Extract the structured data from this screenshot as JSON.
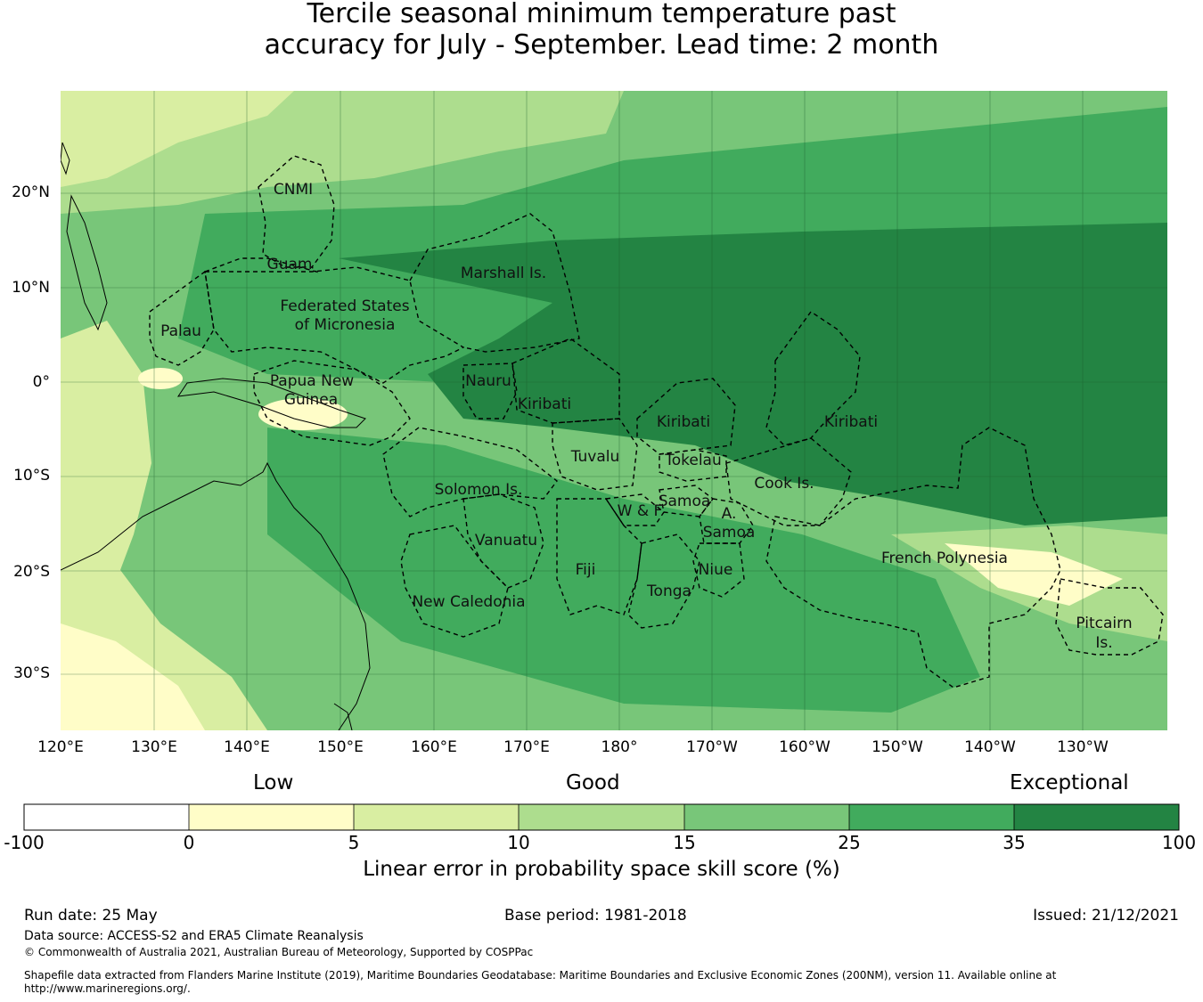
{
  "title_line1": "Tercile seasonal minimum temperature past",
  "title_line2": "accuracy for July - September. Lead time: 2 month",
  "lon_labels": [
    "120°E",
    "130°E",
    "140°E",
    "150°E",
    "160°E",
    "170°E",
    "180°",
    "170°W",
    "160°W",
    "150°W",
    "140°W",
    "130°W"
  ],
  "lat_labels": [
    "20°N",
    "10°N",
    "0°",
    "10°S",
    "20°S",
    "30°S"
  ],
  "regions": [
    "CNMI",
    "Guam",
    "Marshall Is.",
    "Federated States",
    "of Micronesia",
    "Palau",
    "Papua New",
    "Guinea",
    "Nauru",
    "Kiribati",
    "Kiribati",
    "Kiribati",
    "Tuvalu",
    "Tokelau",
    "Cook Is.",
    "Solomon Is.",
    "W & F",
    "Samoa",
    "A.",
    "Samoa",
    "Vanuatu",
    "Fiji",
    "Niue",
    "Tonga",
    "French Polynesia",
    "New Caledonia",
    "Pitcairn",
    "Is."
  ],
  "colorbar": {
    "categories": [
      "Low",
      "Good",
      "Exceptional"
    ],
    "ticks": [
      "-100",
      "0",
      "5",
      "10",
      "15",
      "25",
      "35",
      "100"
    ],
    "colors": [
      "#ffffff",
      "#fffdc8",
      "#d9eea2",
      "#addd8e",
      "#78c679",
      "#41ab5d",
      "#238443"
    ],
    "label": "Linear error in probability space skill score (%)"
  },
  "footer": {
    "run_date": "Run date: 25 May",
    "base_period": "Base period: 1981-2018",
    "issued": "Issued: 21/12/2021",
    "data_source": "Data source: ACCESS-S2 and ERA5 Climate Reanalysis",
    "copyright": "© Commonwealth of Australia 2021, Australian Bureau of Meteorology, Supported by COSPPac",
    "shapefile_line1": "Shapefile data extracted from Flanders Marine Institute (2019), Maritime Boundaries Geodatabase: Maritime Boundaries and Exclusive Economic Zones (200NM), version 11. Available online at",
    "shapefile_line2": "http://www.marineregions.org/."
  }
}
